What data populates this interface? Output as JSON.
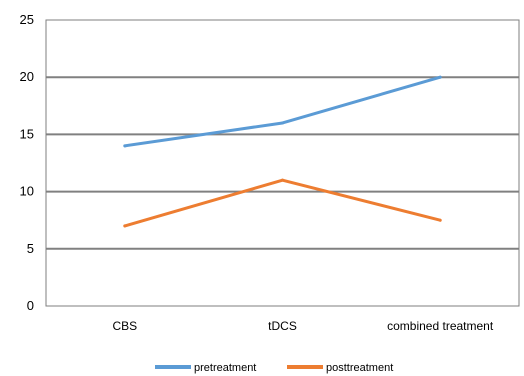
{
  "chart_data": {
    "type": "line",
    "categories": [
      "CBS",
      "tDCS",
      "combined treatment"
    ],
    "series": [
      {
        "name": "pretreatment",
        "values": [
          14,
          16,
          20
        ],
        "color": "#5B9BD5"
      },
      {
        "name": "posttreatment",
        "values": [
          7,
          11,
          7.5
        ],
        "color": "#ED7D31"
      }
    ],
    "yticks": [
      0,
      5,
      10,
      15,
      20,
      25
    ],
    "ylim": [
      0,
      25
    ],
    "title": "",
    "xlabel": "",
    "ylabel": "",
    "grid": true,
    "legend": "bottom"
  }
}
